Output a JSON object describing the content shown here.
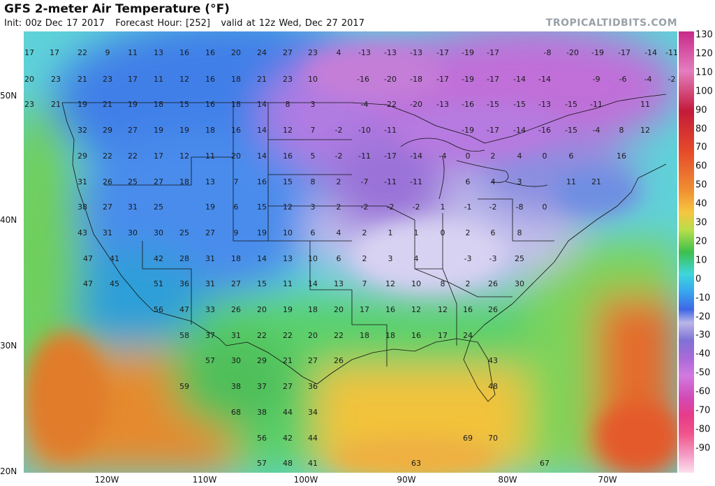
{
  "header": {
    "title": "GFS 2-meter Air Temperature (°F)",
    "init": "Init: 00z Dec 17 2017",
    "forecast_hour": "Forecast Hour: [252]",
    "valid": "valid at 12z Wed, Dec 27 2017",
    "brand": "TROPICALTIDBITS.COM"
  },
  "axes": {
    "latitude_labels": [
      "50N",
      "40N",
      "30N",
      "20N"
    ],
    "longitude_labels": [
      "120W",
      "110W",
      "100W",
      "90W",
      "80W",
      "70W"
    ]
  },
  "colorbar": {
    "labels": [
      "130",
      "120",
      "110",
      "100",
      "90",
      "80",
      "70",
      "60",
      "50",
      "40",
      "30",
      "20",
      "10",
      "0",
      "-10",
      "-20",
      "-30",
      "-40",
      "-50",
      "-60",
      "-70",
      "-80",
      "-90"
    ]
  },
  "station_values": {
    "row_1": [
      "17",
      "17",
      "22",
      "9",
      "11",
      "13",
      "16",
      "16",
      "20",
      "24",
      "27",
      "23",
      "4",
      "-13",
      "-13",
      "-13",
      "-17",
      "-19",
      "-17",
      "-8",
      "-20",
      "-19",
      "-17",
      "-14",
      "-11"
    ],
    "row_2": [
      "20",
      "23",
      "21",
      "23",
      "17",
      "11",
      "12",
      "16",
      "18",
      "21",
      "23",
      "10",
      "-16",
      "-20",
      "-18",
      "-17",
      "-19",
      "-17",
      "-14",
      "-14",
      "-9",
      "-6",
      "-4",
      "-2"
    ],
    "row_3": [
      "23",
      "21",
      "19",
      "21",
      "19",
      "18",
      "15",
      "16",
      "18",
      "14",
      "8",
      "3",
      "-4",
      "-22",
      "-20",
      "-13",
      "-16",
      "-15",
      "-15",
      "-13",
      "-15",
      "-11",
      "11"
    ],
    "row_4": [
      "32",
      "29",
      "27",
      "19",
      "19",
      "18",
      "16",
      "14",
      "12",
      "7",
      "-2",
      "-10",
      "-11",
      "-19",
      "-17",
      "-14",
      "-16",
      "-15",
      "-4",
      "8",
      "12"
    ],
    "row_5": [
      "29",
      "22",
      "22",
      "17",
      "12",
      "11",
      "20",
      "14",
      "16",
      "5",
      "-2",
      "-11",
      "-17",
      "-14",
      "-4",
      "0",
      "2",
      "4",
      "0",
      "6",
      "16"
    ],
    "row_6": [
      "31",
      "26",
      "25",
      "27",
      "18",
      "13",
      "7",
      "16",
      "15",
      "8",
      "2",
      "-7",
      "-11",
      "-11",
      "6",
      "4",
      "3",
      "11",
      "21"
    ],
    "row_7": [
      "38",
      "27",
      "31",
      "25",
      "19",
      "6",
      "15",
      "12",
      "3",
      "2",
      "-2",
      "-2",
      "-2",
      "1",
      "-1",
      "-2",
      "-8",
      "0"
    ],
    "row_8": [
      "43",
      "31",
      "30",
      "30",
      "25",
      "27",
      "9",
      "19",
      "10",
      "6",
      "4",
      "2",
      "1",
      "1",
      "0",
      "2",
      "6",
      "8"
    ],
    "row_9": [
      "47",
      "41",
      "42",
      "28",
      "31",
      "18",
      "14",
      "13",
      "10",
      "6",
      "2",
      "3",
      "4",
      "-3",
      "-3",
      "25"
    ],
    "row_10": [
      "47",
      "45",
      "51",
      "36",
      "31",
      "27",
      "15",
      "11",
      "14",
      "13",
      "7",
      "12",
      "10",
      "8",
      "2",
      "26",
      "30"
    ],
    "row_11": [
      "56",
      "47",
      "33",
      "26",
      "20",
      "19",
      "18",
      "20",
      "17",
      "16",
      "12",
      "12",
      "16",
      "26"
    ],
    "row_12": [
      "58",
      "37",
      "31",
      "22",
      "22",
      "20",
      "22",
      "18",
      "18",
      "16",
      "17",
      "24"
    ],
    "row_13": [
      "57",
      "30",
      "29",
      "21",
      "27",
      "26",
      "43"
    ],
    "row_14": [
      "59",
      "38",
      "37",
      "27",
      "36",
      "48"
    ],
    "row_15": [
      "68",
      "38",
      "44",
      "34"
    ],
    "row_16": [
      "56",
      "42",
      "44",
      "69",
      "70"
    ],
    "row_17": [
      "57",
      "48",
      "41",
      "63",
      "67"
    ]
  }
}
